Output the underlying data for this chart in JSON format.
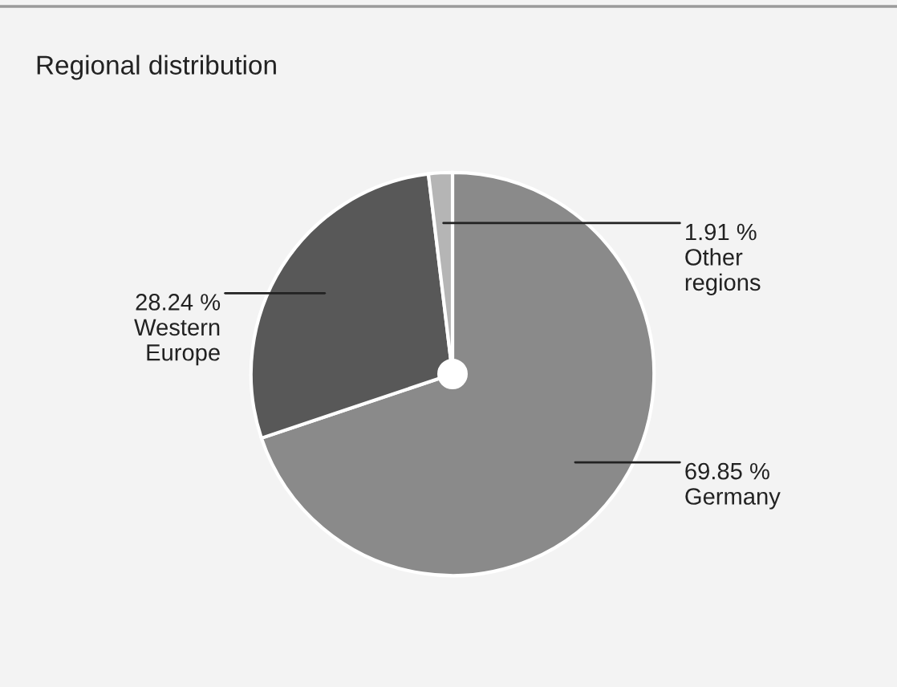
{
  "chart_data": {
    "type": "pie",
    "title": "Regional distribution",
    "categories": [
      "Germany",
      "Western Europe",
      "Other regions"
    ],
    "values": [
      69.85,
      28.24,
      1.91
    ],
    "colors": [
      "#8a8a8a",
      "#585858",
      "#b5b5b5"
    ],
    "value_labels": [
      "69.85 %",
      "28.24 %",
      "1.91 %"
    ],
    "legend": false
  }
}
